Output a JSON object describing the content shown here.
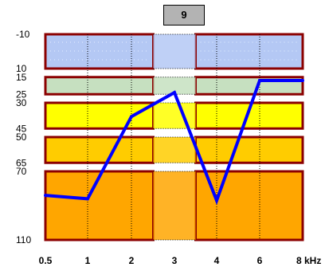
{
  "badge": "9",
  "chart_data": {
    "type": "line",
    "title": "",
    "xlabel": "",
    "ylabel": "",
    "x_tick_labels": [
      "0.5",
      "1",
      "2",
      "3",
      "4",
      "6",
      "8 kHz"
    ],
    "x_positions": [
      0.5,
      1,
      2,
      3,
      4,
      6,
      8
    ],
    "y_tick_labels": [
      "-10",
      "10",
      "15",
      "25",
      "30",
      "45",
      "50",
      "65",
      "70",
      "110"
    ],
    "y_ticks": [
      -10,
      10,
      15,
      25,
      30,
      45,
      50,
      65,
      70,
      110
    ],
    "ylim": [
      -10,
      110
    ],
    "y_inverted": true,
    "x_scale": "log",
    "bands": [
      {
        "from": -10,
        "to": 10,
        "color": "#b4c8f4"
      },
      {
        "from": 15,
        "to": 25,
        "color": "#c6e0c0"
      },
      {
        "from": 30,
        "to": 45,
        "color": "#ffff00"
      },
      {
        "from": 50,
        "to": 65,
        "color": "#ffcc00"
      },
      {
        "from": 70,
        "to": 110,
        "color": "#ffa600"
      }
    ],
    "series": [
      {
        "values": [
          {
            "x": 0.5,
            "y": 84
          },
          {
            "x": 1,
            "y": 86
          },
          {
            "x": 2,
            "y": 38
          },
          {
            "x": 3,
            "y": 24
          },
          {
            "x": 4,
            "y": 87
          },
          {
            "x": 6,
            "y": 17
          },
          {
            "x": 8,
            "y": 17
          }
        ],
        "color": "#0000ff"
      }
    ],
    "highlight_column": {
      "x": 3,
      "color": "#ffffff"
    },
    "border_color": "#8b0000",
    "grid": true
  }
}
